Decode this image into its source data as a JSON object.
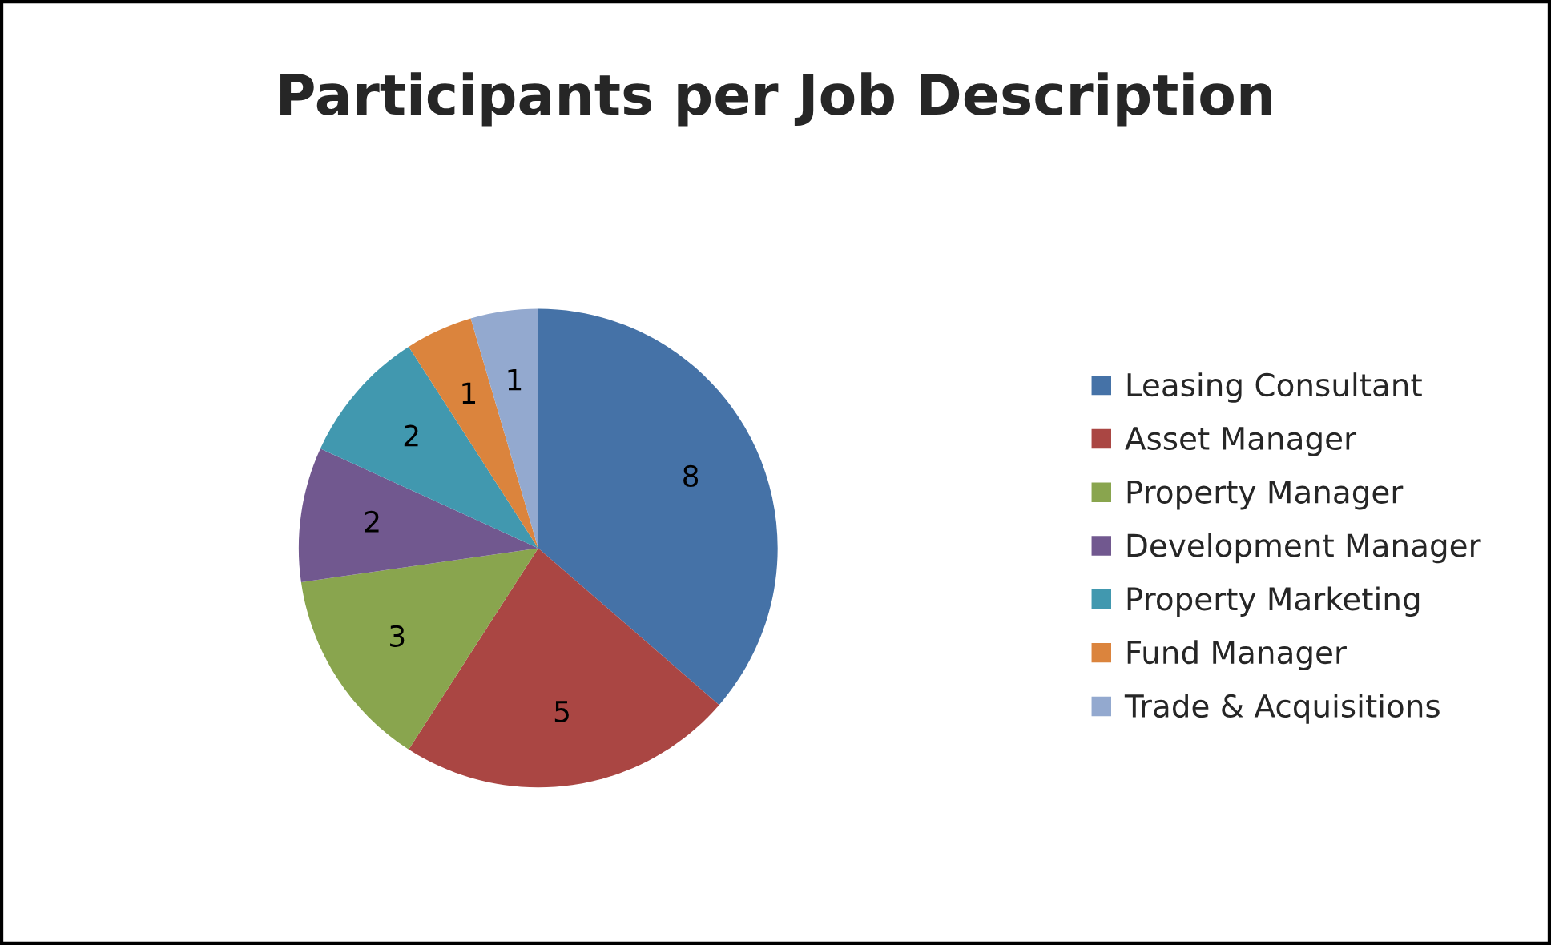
{
  "chart_data": {
    "type": "pie",
    "title": "Participants per Job Description",
    "categories": [
      "Leasing Consultant",
      "Asset Manager",
      "Property Manager",
      "Development Manager",
      "Property Marketing",
      "Fund Manager",
      "Trade & Acquisitions"
    ],
    "values": [
      8,
      5,
      3,
      2,
      2,
      1,
      1
    ],
    "colors": [
      "#4572a7",
      "#aa4643",
      "#89a54e",
      "#71588f",
      "#4198af",
      "#db843d",
      "#93a9cf"
    ],
    "data_labels": true,
    "legend": "right"
  }
}
